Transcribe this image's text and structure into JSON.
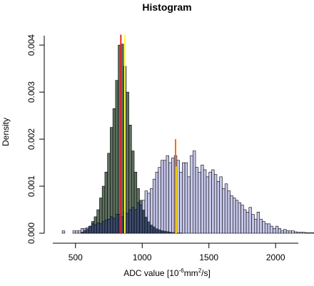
{
  "chart_data": {
    "type": "histogram",
    "title": "Histogram",
    "xlabel_prefix": "ADC value [10",
    "xlabel_sup1": "-6",
    "xlabel_mid": "mm",
    "xlabel_sup2": "2",
    "xlabel_suffix": "/s]",
    "ylabel": "Density",
    "xlim": [
      330,
      2170
    ],
    "ylim": [
      0,
      0.0042
    ],
    "x_ticks": [
      {
        "value": 500,
        "label": "500"
      },
      {
        "value": 1000,
        "label": "1000"
      },
      {
        "value": 1500,
        "label": "1500"
      },
      {
        "value": 2000,
        "label": "2000"
      }
    ],
    "y_ticks": [
      {
        "value": 0.0,
        "label": "0.000"
      },
      {
        "value": 0.001,
        "label": "0.001"
      },
      {
        "value": 0.002,
        "label": "0.002"
      },
      {
        "value": 0.003,
        "label": "0.003"
      },
      {
        "value": 0.004,
        "label": "0.004"
      }
    ],
    "bin_width": 20,
    "series": [
      {
        "fill": "#5e7060",
        "x_start": 540,
        "values": [
          3e-05,
          7e-05,
          0.0001,
          0.00015,
          0.00025,
          0.00035,
          0.0005,
          0.00075,
          0.001,
          0.0013,
          0.0017,
          0.00225,
          0.00265,
          0.00325,
          0.004,
          0.00402,
          0.00355,
          0.003,
          0.0023,
          0.00175,
          0.0013,
          0.00095,
          0.0007,
          0.0005,
          0.00035,
          0.00025,
          0.00018,
          0.00014,
          0.0001,
          8e-05,
          6e-05,
          5e-05,
          4e-05,
          3e-05,
          2e-05,
          2e-05,
          1e-05,
          1e-05
        ]
      },
      {
        "fill": "#c8c8ec",
        "x_start": 400,
        "values": [
          5e-05,
          0,
          0,
          0,
          5e-05,
          5e-05,
          5e-05,
          0.0001,
          0.0001,
          0.00012,
          0.00015,
          0.0002,
          0.00018,
          0.00022,
          0.0002,
          0.00025,
          0.00028,
          0.0003,
          0.00035,
          0.00032,
          0.0004,
          0.0004,
          0.00035,
          0.00045,
          0.00042,
          0.0005,
          0.00055,
          0.0005,
          0.00065,
          0.0006,
          0.0007,
          0.0009,
          0.00085,
          0.00095,
          0.00115,
          0.0013,
          0.0014,
          0.00155,
          0.00155,
          0.00165,
          0.0015,
          0.0016,
          0.00165,
          0.00155,
          0.0013,
          0.0015,
          0.0015,
          0.0012,
          0.00165,
          0.00175,
          0.0014,
          0.0013,
          0.00145,
          0.00135,
          0.0012,
          0.0013,
          0.00135,
          0.00125,
          0.0011,
          0.0012,
          0.00095,
          0.00105,
          0.0009,
          0.0008,
          0.00075,
          0.0007,
          0.00065,
          0.0006,
          0.0005,
          0.00045,
          0.00055,
          0.0004,
          0.0003,
          0.00045,
          0.0003,
          0.00025,
          0.0002,
          0.0002,
          0.00015,
          0.0001,
          0.00015,
          0.0001,
          5e-05,
          8e-05,
          5e-05,
          5e-05,
          5e-05,
          3e-05,
          2e-05,
          2e-05,
          2e-05,
          1e-05,
          1e-05,
          1e-05,
          1e-05,
          1e-05,
          1e-05,
          1e-05,
          5e-05,
          1e-05,
          1e-05,
          1e-05,
          1e-05,
          1e-05,
          1e-05,
          1e-05,
          5e-05,
          1e-05,
          1e-05,
          1e-05,
          1e-05,
          1e-05,
          1e-05,
          1e-05,
          1e-05,
          1e-05,
          1e-05,
          5e-05,
          5e-05
        ]
      }
    ],
    "overlap_fill": "#3b4a6b",
    "vlines": [
      {
        "x": 840,
        "color": "#e8202a",
        "y_top": 0.00422
      },
      {
        "x": 870,
        "color": "#ffff3c",
        "y_top": 0.00422
      },
      {
        "x": 1250,
        "color": "#ff6a00",
        "y_top": 0.002
      },
      {
        "x": 1255,
        "color": "#ffd400",
        "y_top": 0.00142
      }
    ]
  }
}
